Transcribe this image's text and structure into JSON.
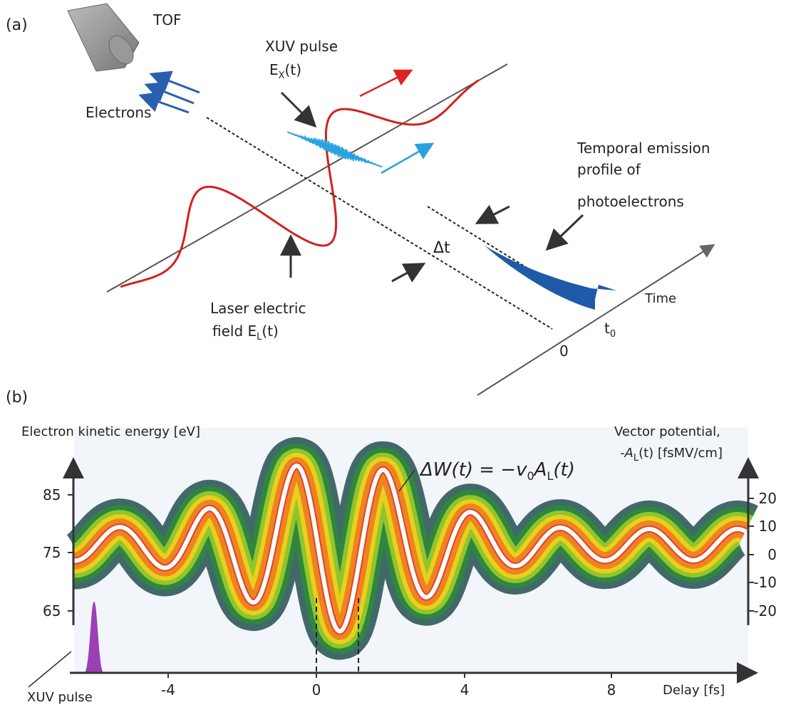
{
  "panel_a": {
    "label": "(a)",
    "tof": "TOF",
    "electrons": "Electrons",
    "xuv_pulse": "XUV pulse",
    "xuv_field": {
      "symbol": "E",
      "sub": "X",
      "arg": "(t)"
    },
    "emission": [
      "Temporal emission",
      "profile of",
      "photoelectrons"
    ],
    "laser": {
      "line1": "Laser electric",
      "line2": "field E",
      "sub": "L",
      "arg": "(t)"
    },
    "delta_t": "Δt",
    "time": "Time",
    "t0": {
      "symbol": "t",
      "sub": "0"
    },
    "zero": "0"
  },
  "panel_b": {
    "label": "(b)",
    "left_axis_title": "Electron kinetic energy [eV]",
    "right_axis_title": {
      "line1": "Vector potential,",
      "symbol": "-A",
      "sub": "L",
      "rest": "(t) [fsMV/cm]"
    },
    "left_ticks": [
      "85",
      "75",
      "65"
    ],
    "right_ticks": [
      "20",
      "10",
      "0",
      "-10",
      "-20"
    ],
    "x_ticks": [
      "-4",
      "0",
      "4",
      "8"
    ],
    "x_axis_title": "Delay [fs]",
    "xuv_label": "XUV pulse",
    "equation": {
      "lhs": "ΔW(t) = −",
      "v": "v",
      "v_sub": "0",
      "a": "A",
      "a_sub": "L",
      "arg": "(t)"
    }
  }
}
